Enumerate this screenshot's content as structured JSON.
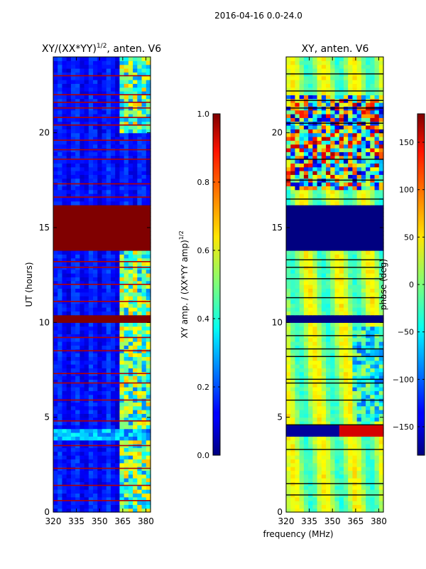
{
  "suptitle": "2016-04-16 0.0-24.0",
  "xlabel_shared": "frequency (MHz)",
  "chart_data": [
    {
      "type": "heatmap",
      "title_main": "XY/(XX*YY)",
      "title_sup": "1/2",
      "title_tail": ", anten. V6",
      "ylabel": "UT (hours)",
      "x_ticks": [
        "320",
        "335",
        "350",
        "365",
        "380"
      ],
      "x_tick_values": [
        320,
        335,
        350,
        365,
        380
      ],
      "xlim": [
        320,
        383
      ],
      "y_ticks": [
        "0",
        "5",
        "10",
        "15",
        "20"
      ],
      "y_tick_values": [
        0,
        5,
        10,
        15,
        20
      ],
      "ylim": [
        0,
        24
      ],
      "colormap": "jet",
      "clim": [
        0,
        1
      ],
      "flagged_bands": [
        [
          13.8,
          16.1
        ],
        [
          10.05,
          10.45
        ]
      ],
      "rfi_band_mhz": [
        363,
        383
      ],
      "colorbar": {
        "label_main": "XY amp. / (XX*YY amp)",
        "label_sup": "1/2",
        "ticks": [
          "0.0",
          "0.2",
          "0.4",
          "0.6",
          "0.8",
          "1.0"
        ],
        "tick_values": [
          0,
          0.2,
          0.4,
          0.6,
          0.8,
          1.0
        ]
      }
    },
    {
      "type": "heatmap",
      "title": "XY, anten. V6",
      "x_ticks": [
        "320",
        "335",
        "350",
        "365",
        "380"
      ],
      "x_tick_values": [
        320,
        335,
        350,
        365,
        380
      ],
      "xlim": [
        320,
        383
      ],
      "y_ticks": [
        "0",
        "5",
        "10",
        "15",
        "20"
      ],
      "y_tick_values": [
        0,
        5,
        10,
        15,
        20
      ],
      "ylim": [
        0,
        24
      ],
      "colormap": "jet",
      "clim": [
        -180,
        180
      ],
      "flagged_bands": [
        [
          13.8,
          16.1
        ],
        [
          10.05,
          10.45
        ]
      ],
      "colorbar": {
        "label": "phase (deg)",
        "ticks": [
          "−150",
          "−100",
          "−50",
          "0",
          "50",
          "100",
          "150"
        ],
        "tick_values": [
          -150,
          -100,
          -50,
          0,
          50,
          100,
          150
        ]
      }
    }
  ]
}
